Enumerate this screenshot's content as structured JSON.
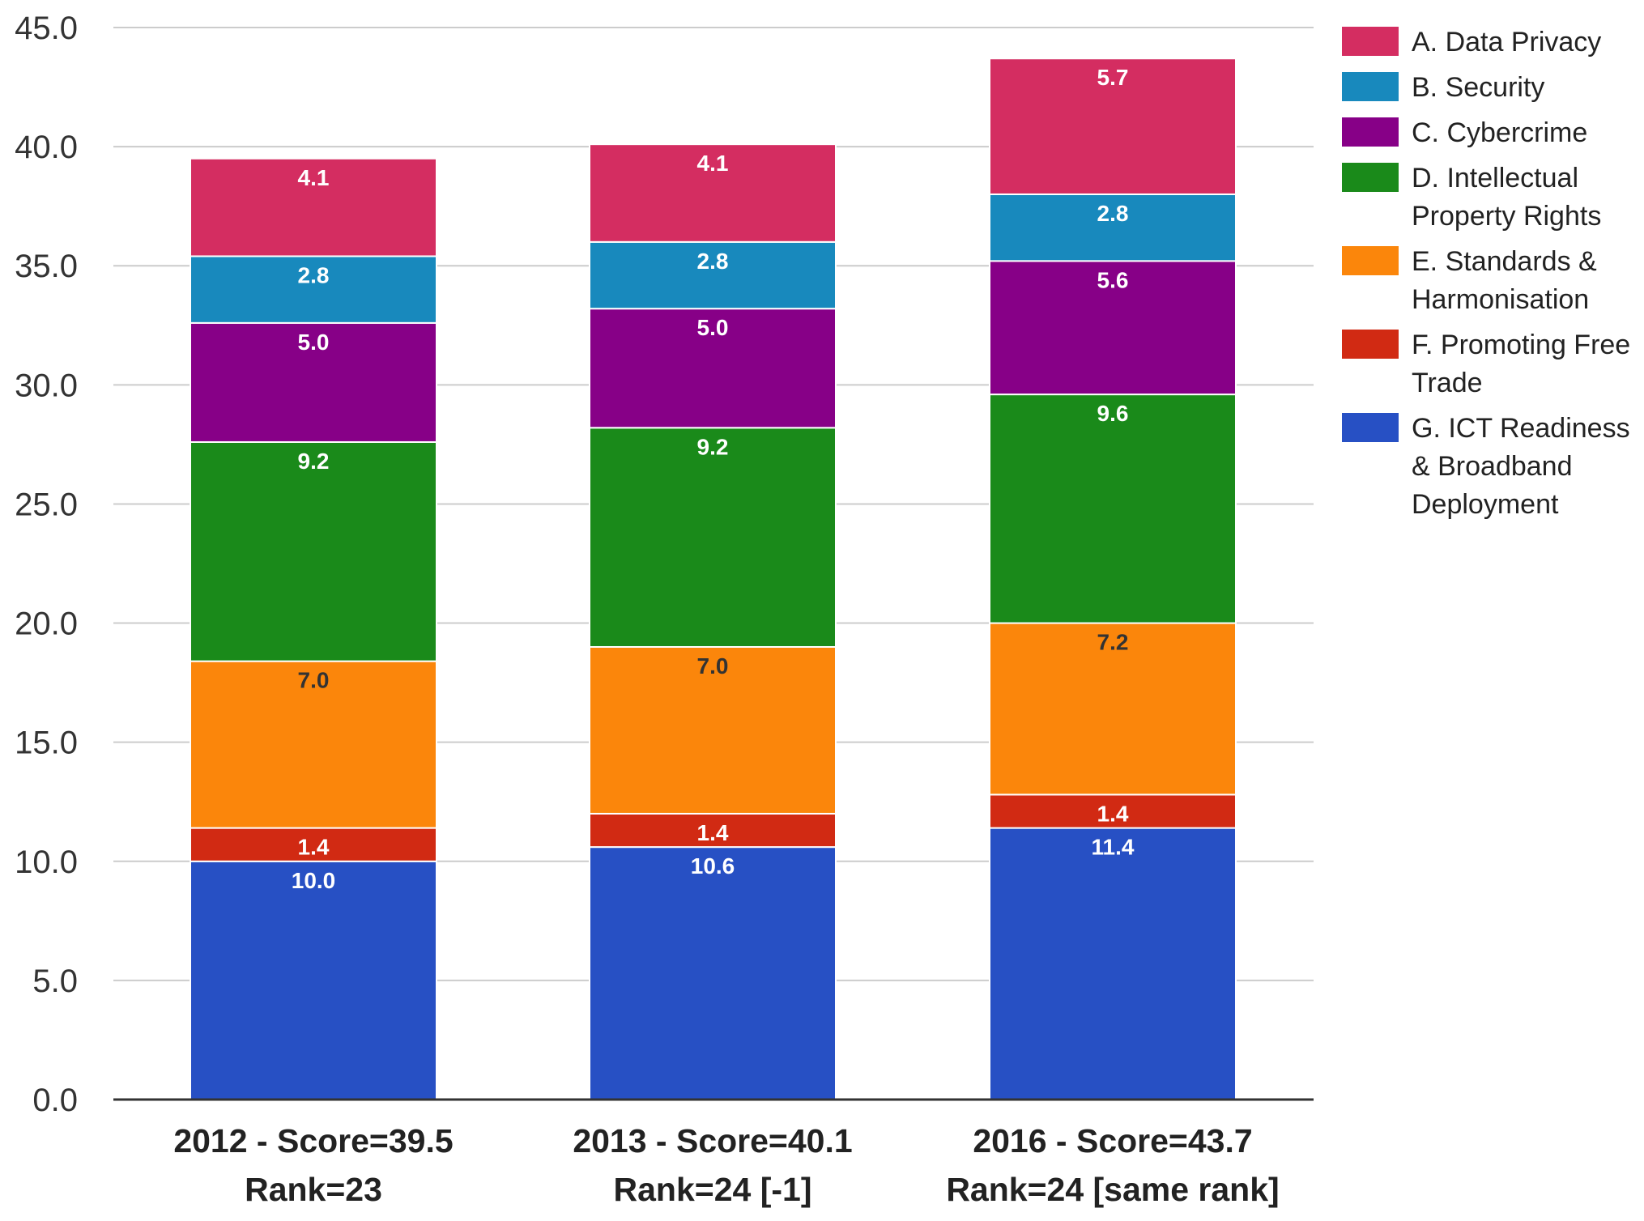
{
  "chart_data": {
    "type": "bar",
    "stacked": true,
    "categories": [
      [
        "2012 - Score=39.5",
        "Rank=23"
      ],
      [
        "2013 - Score=40.1",
        "Rank=24 [-1]"
      ],
      [
        "2016 - Score=43.7",
        "Rank=24 [same rank]"
      ]
    ],
    "ylim": [
      0,
      45
    ],
    "yticks": [
      "0.0",
      "5.0",
      "10.0",
      "15.0",
      "20.0",
      "25.0",
      "30.0",
      "35.0",
      "40.0",
      "45.0"
    ],
    "grid": true,
    "legend_position": "right",
    "series": [
      {
        "name": "G. ICT Readiness & Broadband Deployment",
        "legend_lines": [
          "G. ICT Readiness",
          "& Broadband",
          "Deployment"
        ],
        "color": "#2750c4",
        "label_color": "#ffffff",
        "values": [
          10.0,
          10.6,
          11.4
        ],
        "labels": [
          "10.0",
          "10.6",
          "11.4"
        ]
      },
      {
        "name": "F. Promoting Free Trade",
        "legend_lines": [
          "F. Promoting Free",
          "Trade"
        ],
        "color": "#d12a13",
        "label_color": "#ffffff",
        "values": [
          1.4,
          1.4,
          1.4
        ],
        "labels": [
          "1.4",
          "1.4",
          "1.4"
        ]
      },
      {
        "name": "E. Standards & Harmonisation",
        "legend_lines": [
          "E. Standards &",
          "Harmonisation"
        ],
        "color": "#fb860b",
        "label_color": "#333333",
        "values": [
          7.0,
          7.0,
          7.2
        ],
        "labels": [
          "7.0",
          "7.0",
          "7.2"
        ]
      },
      {
        "name": "D. Intellectual Property Rights",
        "legend_lines": [
          "D. Intellectual",
          "Property Rights"
        ],
        "color": "#1a8a1a",
        "label_color": "#ffffff",
        "values": [
          9.2,
          9.2,
          9.6
        ],
        "labels": [
          "9.2",
          "9.2",
          "9.6"
        ]
      },
      {
        "name": "C. Cybercrime",
        "legend_lines": [
          "C. Cybercrime"
        ],
        "color": "#870087",
        "label_color": "#ffffff",
        "values": [
          5.0,
          5.0,
          5.6
        ],
        "labels": [
          "5.0",
          "5.0",
          "5.6"
        ]
      },
      {
        "name": "B. Security",
        "legend_lines": [
          "B. Security"
        ],
        "color": "#1889bd",
        "label_color": "#ffffff",
        "values": [
          2.8,
          2.8,
          2.8
        ],
        "labels": [
          "2.8",
          "2.8",
          "2.8"
        ]
      },
      {
        "name": "A. Data Privacy",
        "legend_lines": [
          "A. Data Privacy"
        ],
        "color": "#d42d61",
        "label_color": "#ffffff",
        "values": [
          4.1,
          4.1,
          5.7
        ],
        "labels": [
          "4.1",
          "4.1",
          "5.7"
        ]
      }
    ]
  }
}
